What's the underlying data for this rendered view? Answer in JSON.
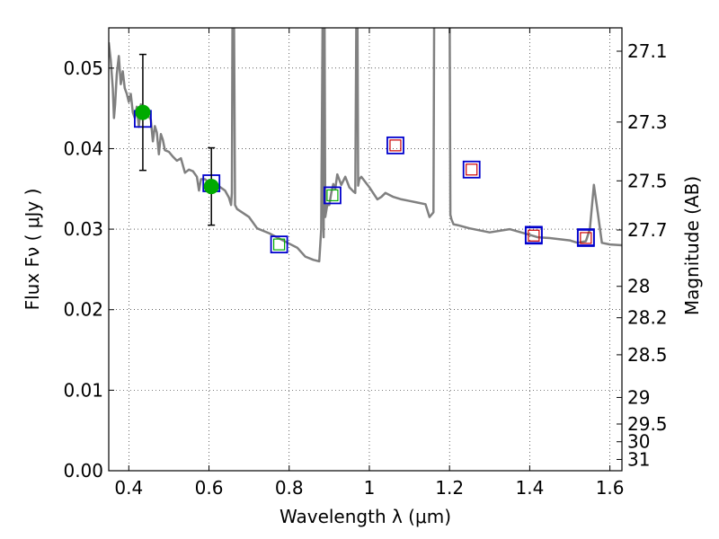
{
  "chart_data": {
    "type": "scatter",
    "xlabel": "Wavelength  λ (μm)",
    "ylabel": "Flux  Fν  ( μJy )",
    "ylabel_right": "Magnitude (AB)",
    "xlim": [
      0.35,
      1.63
    ],
    "ylim": [
      0.0,
      0.055
    ],
    "grid": true,
    "x_ticks": [
      0.4,
      0.6,
      0.8,
      1.0,
      1.2,
      1.4,
      1.6
    ],
    "x_tick_labels": [
      "0.4",
      "0.6",
      "0.8",
      "1",
      "1.2",
      "1.4",
      "1.6"
    ],
    "y_ticks": [
      0.0,
      0.01,
      0.02,
      0.03,
      0.04,
      0.05
    ],
    "y_tick_labels": [
      "0.00",
      "0.01",
      "0.02",
      "0.03",
      "0.04",
      "0.05"
    ],
    "right_ticks": [
      {
        "label": "27.1",
        "flux": 0.0521
      },
      {
        "label": "27.3",
        "flux": 0.0433
      },
      {
        "label": "27.5",
        "flux": 0.036
      },
      {
        "label": "27.7",
        "flux": 0.0299
      },
      {
        "label": "28",
        "flux": 0.0229
      },
      {
        "label": "28.2",
        "flux": 0.019
      },
      {
        "label": "28.5",
        "flux": 0.0144
      },
      {
        "label": "29",
        "flux": 0.0091
      },
      {
        "label": "29.5",
        "flux": 0.0058
      },
      {
        "label": "30",
        "flux": 0.0036
      },
      {
        "label": "31",
        "flux": 0.0014
      }
    ],
    "colors": {
      "model": "#808080",
      "observed": "#00aa00",
      "model_box": "#0000cc",
      "red_box": "#cc0000",
      "errorbar": "#000000"
    },
    "model_spectrum": {
      "x": [
        0.35,
        0.355,
        0.36,
        0.363,
        0.366,
        0.37,
        0.375,
        0.38,
        0.385,
        0.39,
        0.395,
        0.4,
        0.405,
        0.41,
        0.415,
        0.42,
        0.425,
        0.43,
        0.435,
        0.44,
        0.445,
        0.45,
        0.455,
        0.46,
        0.465,
        0.47,
        0.475,
        0.48,
        0.485,
        0.49,
        0.5,
        0.51,
        0.52,
        0.53,
        0.54,
        0.55,
        0.56,
        0.57,
        0.575,
        0.58,
        0.59,
        0.6,
        0.62,
        0.64,
        0.65,
        0.655,
        0.657,
        0.659,
        0.662,
        0.665,
        0.67,
        0.7,
        0.72,
        0.75,
        0.8,
        0.82,
        0.84,
        0.86,
        0.875,
        0.88,
        0.884,
        0.886,
        0.888,
        0.89,
        0.895,
        0.9,
        0.905,
        0.91,
        0.915,
        0.92,
        0.93,
        0.94,
        0.95,
        0.96,
        0.965,
        0.968,
        0.97,
        0.972,
        0.975,
        0.98,
        1.0,
        1.02,
        1.03,
        1.04,
        1.06,
        1.08,
        1.1,
        1.12,
        1.14,
        1.15,
        1.155,
        1.16,
        1.162,
        1.165,
        1.17,
        1.18,
        1.2,
        1.202,
        1.205,
        1.21,
        1.22,
        1.25,
        1.3,
        1.35,
        1.4,
        1.42,
        1.45,
        1.5,
        1.52,
        1.53,
        1.54,
        1.55,
        1.56,
        1.57,
        1.58,
        1.6,
        1.63
      ],
      "y": [
        0.0532,
        0.051,
        0.0475,
        0.0438,
        0.0455,
        0.0492,
        0.0515,
        0.048,
        0.0496,
        0.0475,
        0.0468,
        0.0458,
        0.0468,
        0.0445,
        0.0438,
        0.0452,
        0.0427,
        0.0455,
        0.0452,
        0.0438,
        0.0445,
        0.044,
        0.0436,
        0.0409,
        0.0428,
        0.042,
        0.0393,
        0.0418,
        0.0411,
        0.0398,
        0.0396,
        0.039,
        0.0385,
        0.0388,
        0.037,
        0.0374,
        0.0372,
        0.0365,
        0.0348,
        0.0362,
        0.0362,
        0.0358,
        0.0355,
        0.0348,
        0.0339,
        0.033,
        0.0345,
        0.06,
        0.06,
        0.033,
        0.0325,
        0.0315,
        0.0301,
        0.0295,
        0.0282,
        0.0277,
        0.0266,
        0.0262,
        0.026,
        0.03,
        0.06,
        0.029,
        0.06,
        0.0315,
        0.033,
        0.033,
        0.0345,
        0.0356,
        0.035,
        0.0368,
        0.0355,
        0.0365,
        0.0352,
        0.0347,
        0.0345,
        0.06,
        0.06,
        0.0354,
        0.0362,
        0.0365,
        0.0352,
        0.0337,
        0.034,
        0.0345,
        0.034,
        0.0337,
        0.0335,
        0.0333,
        0.0331,
        0.0315,
        0.0318,
        0.0321,
        0.06,
        0.06,
        0.06,
        0.06,
        0.06,
        0.0318,
        0.0312,
        0.0306,
        0.0305,
        0.0301,
        0.0296,
        0.03,
        0.0293,
        0.029,
        0.0289,
        0.0286,
        0.0283,
        0.0284,
        0.0285,
        0.03,
        0.0355,
        0.032,
        0.0283,
        0.0281,
        0.028
      ]
    },
    "observed": {
      "name": "",
      "x": [
        0.435,
        0.606
      ],
      "y": [
        0.0445,
        0.0353
      ],
      "err": [
        0.0072,
        0.0048
      ]
    },
    "model_boxes": {
      "x": [
        0.435,
        0.606,
        0.775,
        0.908,
        1.41,
        1.54
      ],
      "y": [
        0.0437,
        0.0357,
        0.0281,
        0.0342,
        0.0293,
        0.029
      ]
    },
    "red_boxes": {
      "x": [
        1.065,
        1.255,
        1.41,
        1.54
      ],
      "y": [
        0.0404,
        0.0374,
        0.0292,
        0.0289
      ]
    },
    "inner_green_boxes": {
      "x": [
        0.775,
        0.908
      ],
      "y": [
        0.0281,
        0.0342
      ]
    }
  }
}
